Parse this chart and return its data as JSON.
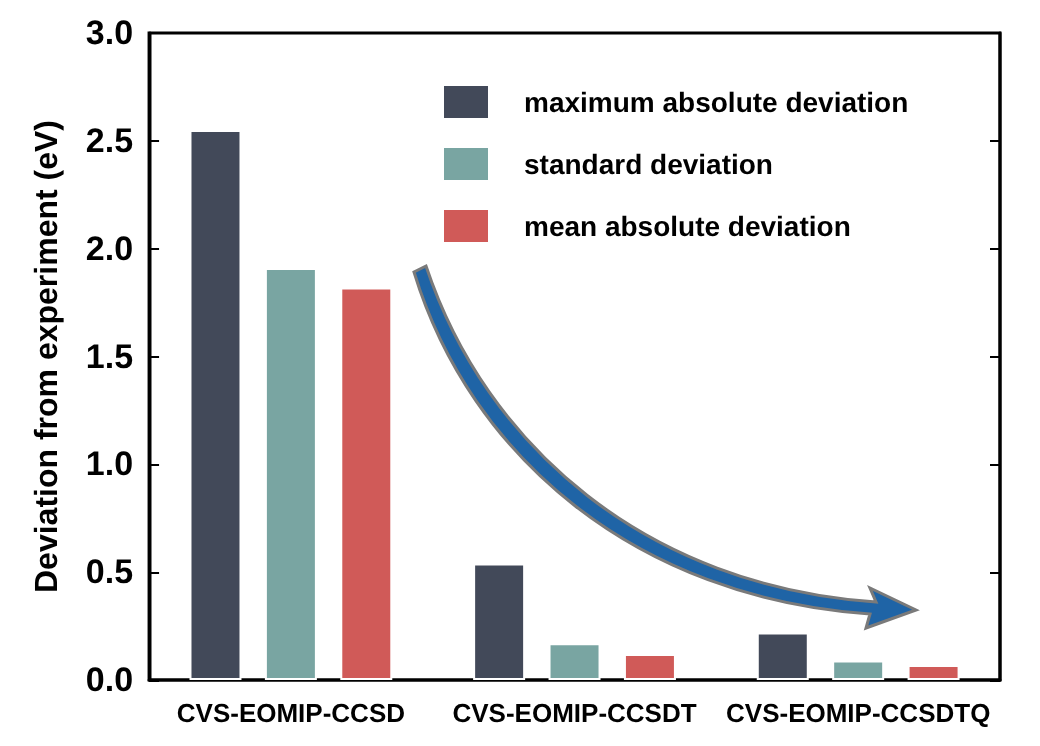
{
  "chart_data": {
    "type": "bar",
    "ylabel": "Deviation from experiment (eV)",
    "categories": [
      "CVS-EOMIP-CCSD",
      "CVS-EOMIP-CCSDT",
      "CVS-EOMIP-CCSDTQ"
    ],
    "series": [
      {
        "name": "maximum absolute deviation",
        "color": "#424959",
        "values": [
          2.55,
          0.54,
          0.22
        ]
      },
      {
        "name": "standard deviation",
        "color": "#79a5a2",
        "values": [
          1.91,
          0.17,
          0.09
        ]
      },
      {
        "name": "mean absolute deviation",
        "color": "#d05a58",
        "values": [
          1.82,
          0.12,
          0.07
        ]
      }
    ],
    "ylim": [
      0,
      3
    ],
    "yticks": [
      {
        "value": 0,
        "label": "0.0"
      },
      0.5,
      {
        "value": 1,
        "label": "1.0"
      },
      1.5,
      {
        "value": 2,
        "label": "2.0"
      },
      2.5,
      {
        "value": 3,
        "label": "3.0"
      }
    ],
    "grid": false,
    "legend": "top right"
  }
}
